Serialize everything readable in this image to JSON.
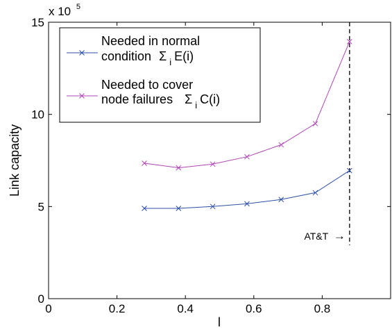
{
  "chart_data": {
    "type": "line",
    "xlabel": "l",
    "ylabel": "Link capacity",
    "y_multiplier": "x 10",
    "y_multiplier_exp": "5",
    "xlim": [
      0,
      1
    ],
    "ylim": [
      0,
      15
    ],
    "x_ticks": [
      0,
      0.2,
      0.4,
      0.6,
      0.8
    ],
    "x_tick_labels": [
      "0",
      "0.2",
      "0.4",
      "0.6",
      "0.8"
    ],
    "y_ticks": [
      0,
      5,
      10,
      15
    ],
    "y_tick_labels": [
      "0",
      "5",
      "10",
      "15"
    ],
    "grid": false,
    "legend_position": "top-left",
    "x": [
      0.28,
      0.38,
      0.48,
      0.58,
      0.68,
      0.78,
      0.88
    ],
    "series": [
      {
        "name_line1": "Needed in normal",
        "name_line2": "condition",
        "name_formula": "Σ",
        "name_formula_sub": "i",
        "name_formula_tail": "E(i)",
        "color": "#2b4fa6",
        "marker": "x",
        "values": [
          4.9,
          4.9,
          5.0,
          5.15,
          5.38,
          5.75,
          6.95
        ]
      },
      {
        "name_line1": "Needed to cover",
        "name_line2": "node failures",
        "name_formula": "Σ",
        "name_formula_sub": "i",
        "name_formula_tail": "C(i)",
        "color": "#b044b8",
        "marker": "x",
        "values": [
          7.35,
          7.1,
          7.3,
          7.7,
          8.35,
          9.5,
          13.95
        ]
      }
    ],
    "annotation": {
      "text": "AT&T",
      "arrow": "→",
      "vline_x": 0.88,
      "vline_y_range": [
        2.9,
        15
      ],
      "label_y": 3.2
    }
  }
}
